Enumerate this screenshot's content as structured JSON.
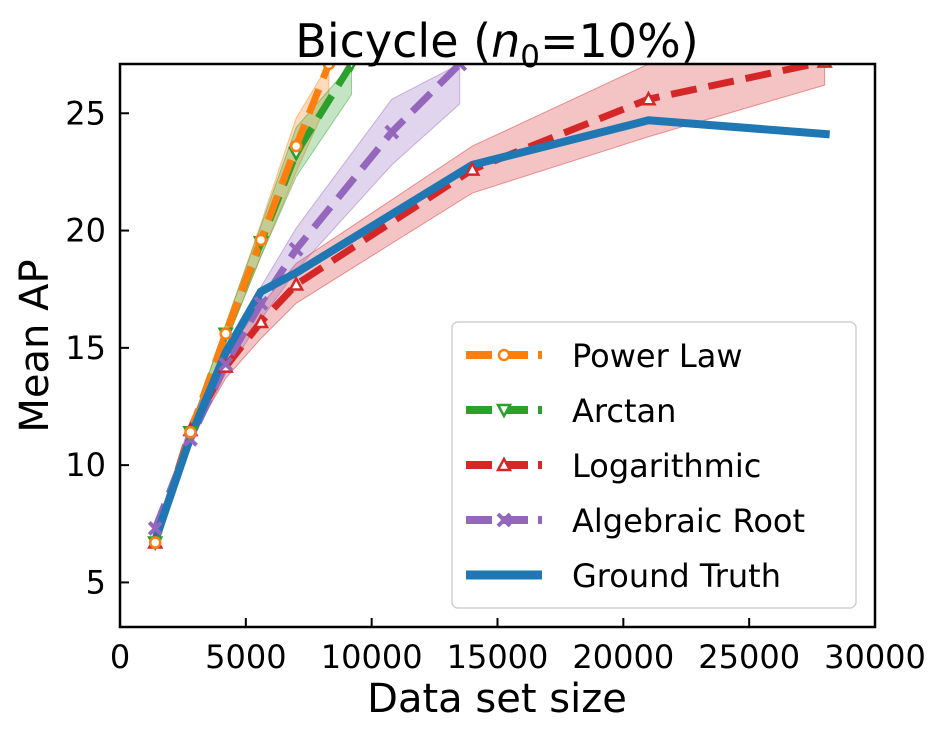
{
  "chart_data": {
    "type": "line",
    "title_main": "Bicycle (",
    "title_var": "n",
    "title_sub": "0",
    "title_rest": "=10%)",
    "xlabel": "Data set size",
    "ylabel": "Mean AP",
    "xlim": [
      0,
      30000
    ],
    "ylim": [
      3.1,
      27.1
    ],
    "xticks": [
      0,
      5000,
      10000,
      15000,
      20000,
      25000,
      30000
    ],
    "xtick_labels": [
      "0",
      "5000",
      "10000",
      "15000",
      "20000",
      "25000",
      "30000"
    ],
    "yticks": [
      5,
      10,
      15,
      20,
      25
    ],
    "ytick_labels": [
      "5",
      "10",
      "15",
      "20",
      "25"
    ],
    "grid": false,
    "legend_position": "lower-right",
    "series": [
      {
        "name": "Power Law",
        "color": "#ff7f0e",
        "style": "dashed",
        "marker": "circle",
        "x": [
          1400,
          2800,
          4200,
          5600,
          7000,
          8300
        ],
        "y": [
          6.7,
          11.4,
          15.6,
          19.6,
          23.6,
          27.1
        ],
        "band_low": [
          6.6,
          11.2,
          15.2,
          18.9,
          22.5,
          25.6
        ],
        "band_high": [
          6.8,
          11.6,
          16.0,
          20.3,
          24.8,
          27.1
        ]
      },
      {
        "name": "Arctan",
        "color": "#2ca02c",
        "style": "dashed",
        "marker": "triangle-down",
        "x": [
          1400,
          2800,
          4200,
          5600,
          7000,
          9200
        ],
        "y": [
          6.7,
          11.4,
          15.6,
          19.5,
          23.3,
          27.1
        ],
        "band_low": [
          6.6,
          11.2,
          15.2,
          18.9,
          22.3,
          25.8
        ],
        "band_high": [
          6.8,
          11.6,
          16.0,
          20.2,
          24.4,
          27.1
        ]
      },
      {
        "name": "Logarithmic",
        "color": "#d62728",
        "style": "dashed",
        "marker": "triangle-up",
        "x": [
          1400,
          2800,
          4200,
          5600,
          7000,
          14000,
          21000,
          28000
        ],
        "y": [
          6.7,
          11.5,
          14.2,
          16.1,
          17.7,
          22.6,
          25.6,
          27.2
        ],
        "band_low": [
          6.5,
          11.1,
          13.7,
          15.4,
          16.9,
          21.6,
          24.0,
          26.2
        ],
        "band_high": [
          6.9,
          11.9,
          14.8,
          16.8,
          18.6,
          23.6,
          27.1,
          27.1
        ]
      },
      {
        "name": "Algebraic Root",
        "color": "#9467bd",
        "style": "dashed",
        "marker": "x",
        "x": [
          1400,
          2800,
          4200,
          5600,
          7000,
          10800,
          13500
        ],
        "y": [
          7.3,
          11.1,
          14.3,
          16.9,
          19.2,
          24.2,
          27.1
        ],
        "band_low": [
          7.2,
          10.9,
          13.9,
          16.2,
          18.3,
          22.8,
          25.4
        ],
        "band_high": [
          7.4,
          11.3,
          14.7,
          17.6,
          20.1,
          25.6,
          27.1
        ]
      },
      {
        "name": "Ground Truth",
        "color": "#1f77b4",
        "style": "solid",
        "marker": "none",
        "x": [
          1400,
          2800,
          4200,
          5600,
          7000,
          14000,
          21000,
          28200
        ],
        "y": [
          6.8,
          11.2,
          14.8,
          17.4,
          18.2,
          22.8,
          24.7,
          24.1
        ]
      }
    ]
  }
}
